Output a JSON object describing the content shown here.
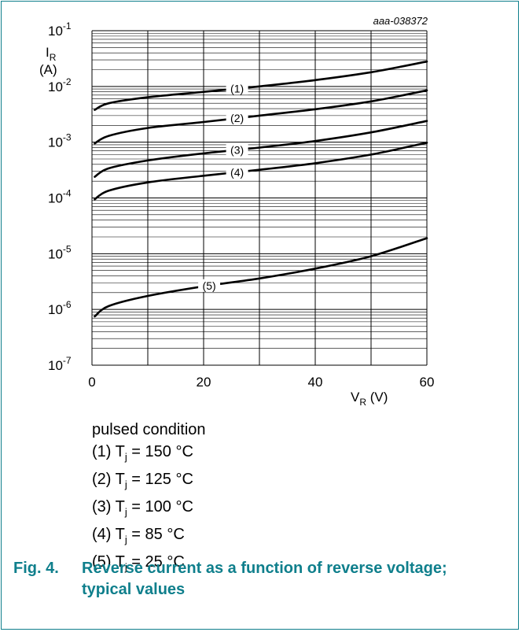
{
  "chart_data": {
    "type": "line",
    "code": "aaa-038372",
    "ylabel": {
      "symbol": "I",
      "sub": "R",
      "unit": "(A)"
    },
    "xlabel": {
      "symbol": "V",
      "sub": "R",
      "unit": "(V)"
    },
    "xlim": [
      0,
      60
    ],
    "ylim": [
      1e-07,
      0.1
    ],
    "yscale": "log",
    "grid": true,
    "x_ticks": [
      "0",
      "20",
      "40",
      "60"
    ],
    "y_ticks": [
      {
        "base": "10",
        "exp": "-1"
      },
      {
        "base": "10",
        "exp": "-2"
      },
      {
        "base": "10",
        "exp": "-3"
      },
      {
        "base": "10",
        "exp": "-4"
      },
      {
        "base": "10",
        "exp": "-5"
      },
      {
        "base": "10",
        "exp": "-6"
      },
      {
        "base": "10",
        "exp": "-7"
      }
    ],
    "series": [
      {
        "name": "(1)",
        "x": [
          0.5,
          3,
          10,
          20,
          30,
          40,
          50,
          60
        ],
        "values": [
          0.0038,
          0.005,
          0.0064,
          0.008,
          0.01,
          0.013,
          0.018,
          0.028
        ]
      },
      {
        "name": "(2)",
        "x": [
          0.5,
          3,
          10,
          20,
          30,
          40,
          50,
          60
        ],
        "values": [
          0.00095,
          0.0013,
          0.0018,
          0.0023,
          0.003,
          0.0039,
          0.0054,
          0.0085
        ]
      },
      {
        "name": "(3)",
        "x": [
          0.5,
          3,
          10,
          20,
          30,
          40,
          50,
          60
        ],
        "values": [
          0.00024,
          0.00034,
          0.00047,
          0.00063,
          0.0008,
          0.00105,
          0.0015,
          0.0024
        ]
      },
      {
        "name": "(4)",
        "x": [
          0.5,
          3,
          10,
          20,
          30,
          40,
          50,
          60
        ],
        "values": [
          9.5e-05,
          0.000135,
          0.00019,
          0.00025,
          0.00032,
          0.00042,
          0.0006,
          0.00098
        ]
      },
      {
        "name": "(5)",
        "x": [
          0.5,
          3,
          10,
          20,
          30,
          40,
          50,
          60
        ],
        "values": [
          7.5e-07,
          1.15e-06,
          1.75e-06,
          2.6e-06,
          3.6e-06,
          5.4e-06,
          9e-06,
          1.9e-05
        ]
      }
    ],
    "series_color": "#000000",
    "grid_color": "#000000"
  },
  "legend": {
    "heading": "pulsed condition",
    "items": [
      {
        "prefix": "(1) T",
        "sub": "j",
        "suffix": " = 150 °C"
      },
      {
        "prefix": "(2) T",
        "sub": "j",
        "suffix": " = 125 °C"
      },
      {
        "prefix": "(3) T",
        "sub": "j",
        "suffix": " = 100 °C"
      },
      {
        "prefix": "(4) T",
        "sub": "j",
        "suffix": " = 85 °C"
      },
      {
        "prefix": "(5) T",
        "sub": "j",
        "suffix": " = 25 °C"
      }
    ]
  },
  "caption": {
    "number": "Fig. 4.",
    "text": "Reverse current as a function of reverse voltage; typical values",
    "color": "#0f7f8c"
  }
}
